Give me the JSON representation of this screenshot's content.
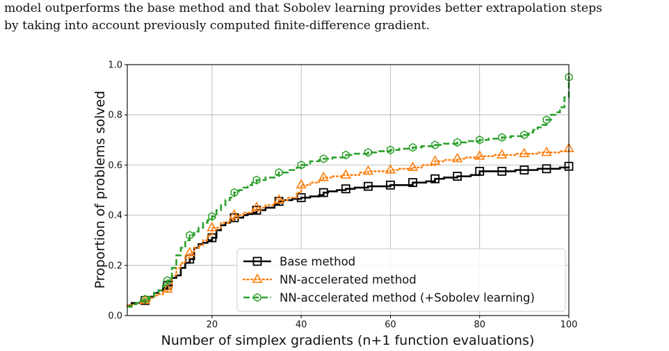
{
  "paragraph": {
    "line1": "model outperforms the base method and that Sobolev learning provides better extrapolation steps",
    "line2": "by taking into account previously computed finite-difference gradient."
  },
  "chart_data": {
    "type": "line",
    "xlabel": "Number of simplex gradients (n+1 function evaluations)",
    "ylabel": "Proportion of problems solved",
    "xlim": [
      1,
      100
    ],
    "ylim": [
      0.0,
      1.0
    ],
    "xticks": [
      20,
      40,
      60,
      80,
      100
    ],
    "yticks": [
      0.0,
      0.2,
      0.4,
      0.6,
      0.8,
      1.0
    ],
    "xtick_labels": [
      "20",
      "40",
      "60",
      "80",
      "100"
    ],
    "ytick_labels": [
      "0.0",
      "0.2",
      "0.4",
      "0.6",
      "0.8",
      "1.0"
    ],
    "grid": true,
    "legend_position": "lower-right",
    "series": [
      {
        "name": "Base method",
        "color": "#000000",
        "line_style": "solid",
        "marker": "square",
        "marker_x": [
          5,
          10,
          15,
          20,
          25,
          30,
          35,
          40,
          45,
          50,
          55,
          60,
          65,
          70,
          75,
          80,
          85,
          90,
          95,
          100
        ],
        "x": [
          1,
          2,
          3,
          4,
          5,
          6,
          7,
          8,
          9,
          10,
          11,
          12,
          13,
          14,
          15,
          16,
          17,
          18,
          19,
          20,
          21,
          22,
          23,
          24,
          25,
          26,
          27,
          28,
          29,
          30,
          32,
          34,
          35,
          36,
          38,
          40,
          42,
          44,
          45,
          46,
          48,
          50,
          52,
          55,
          57,
          60,
          62,
          65,
          68,
          70,
          72,
          75,
          78,
          80,
          83,
          85,
          88,
          90,
          93,
          95,
          98,
          100
        ],
        "y": [
          0.04,
          0.05,
          0.05,
          0.055,
          0.06,
          0.075,
          0.09,
          0.1,
          0.11,
          0.12,
          0.15,
          0.16,
          0.19,
          0.21,
          0.225,
          0.27,
          0.285,
          0.29,
          0.3,
          0.31,
          0.34,
          0.36,
          0.37,
          0.38,
          0.39,
          0.39,
          0.4,
          0.405,
          0.41,
          0.42,
          0.43,
          0.445,
          0.455,
          0.46,
          0.465,
          0.47,
          0.475,
          0.48,
          0.49,
          0.495,
          0.5,
          0.505,
          0.51,
          0.515,
          0.515,
          0.52,
          0.52,
          0.53,
          0.535,
          0.545,
          0.55,
          0.555,
          0.56,
          0.575,
          0.575,
          0.575,
          0.58,
          0.58,
          0.585,
          0.585,
          0.59,
          0.595
        ]
      },
      {
        "name": "NN-accelerated method",
        "color": "#ff7f0e",
        "line_style": "dotted",
        "marker": "triangle",
        "marker_x": [
          5,
          10,
          15,
          20,
          25,
          30,
          35,
          40,
          45,
          50,
          55,
          60,
          65,
          70,
          75,
          80,
          85,
          90,
          95,
          100
        ],
        "x": [
          1,
          2,
          3,
          4,
          5,
          6,
          7,
          8,
          9,
          10,
          11,
          12,
          13,
          14,
          15,
          16,
          17,
          18,
          19,
          20,
          22,
          24,
          25,
          27,
          29,
          30,
          32,
          34,
          35,
          37,
          39,
          40,
          42,
          44,
          45,
          47,
          49,
          50,
          53,
          55,
          57,
          60,
          62,
          65,
          67,
          70,
          72,
          75,
          77,
          80,
          83,
          85,
          88,
          90,
          93,
          95,
          98,
          100
        ],
        "y": [
          0.04,
          0.045,
          0.05,
          0.055,
          0.06,
          0.07,
          0.08,
          0.085,
          0.095,
          0.105,
          0.16,
          0.19,
          0.21,
          0.23,
          0.25,
          0.27,
          0.28,
          0.3,
          0.32,
          0.35,
          0.37,
          0.38,
          0.4,
          0.41,
          0.42,
          0.43,
          0.44,
          0.45,
          0.46,
          0.47,
          0.49,
          0.52,
          0.53,
          0.54,
          0.55,
          0.555,
          0.56,
          0.56,
          0.57,
          0.575,
          0.575,
          0.58,
          0.585,
          0.59,
          0.6,
          0.615,
          0.62,
          0.625,
          0.63,
          0.635,
          0.64,
          0.64,
          0.645,
          0.645,
          0.65,
          0.65,
          0.655,
          0.665
        ]
      },
      {
        "name": "NN-accelerated method (+Sobolev learning)",
        "color": "#2ca02c",
        "line_style": "dashed",
        "marker": "hexagon",
        "marker_x": [
          5,
          10,
          15,
          20,
          25,
          30,
          35,
          40,
          45,
          50,
          55,
          60,
          65,
          70,
          75,
          80,
          85,
          90,
          95,
          100
        ],
        "x": [
          1,
          2,
          3,
          4,
          5,
          6,
          7,
          8,
          9,
          10,
          11,
          12,
          13,
          14,
          15,
          16,
          17,
          18,
          19,
          20,
          21,
          22,
          23,
          24,
          25,
          26,
          27,
          28,
          29,
          30,
          32,
          34,
          35,
          37,
          39,
          40,
          42,
          44,
          45,
          47,
          50,
          52,
          55,
          57,
          60,
          62,
          65,
          67,
          70,
          72,
          75,
          77,
          80,
          82,
          85,
          87,
          90,
          91,
          92,
          93,
          94,
          95,
          96,
          97,
          98,
          99,
          100
        ],
        "y": [
          0.035,
          0.045,
          0.05,
          0.06,
          0.065,
          0.075,
          0.09,
          0.1,
          0.12,
          0.14,
          0.19,
          0.24,
          0.27,
          0.3,
          0.32,
          0.335,
          0.35,
          0.37,
          0.38,
          0.395,
          0.42,
          0.44,
          0.46,
          0.47,
          0.49,
          0.5,
          0.51,
          0.52,
          0.53,
          0.54,
          0.55,
          0.56,
          0.57,
          0.58,
          0.59,
          0.6,
          0.615,
          0.62,
          0.625,
          0.63,
          0.64,
          0.645,
          0.65,
          0.655,
          0.66,
          0.665,
          0.67,
          0.675,
          0.68,
          0.685,
          0.69,
          0.695,
          0.7,
          0.705,
          0.71,
          0.715,
          0.72,
          0.73,
          0.74,
          0.75,
          0.76,
          0.78,
          0.8,
          0.81,
          0.83,
          0.87,
          0.95
        ]
      }
    ]
  }
}
